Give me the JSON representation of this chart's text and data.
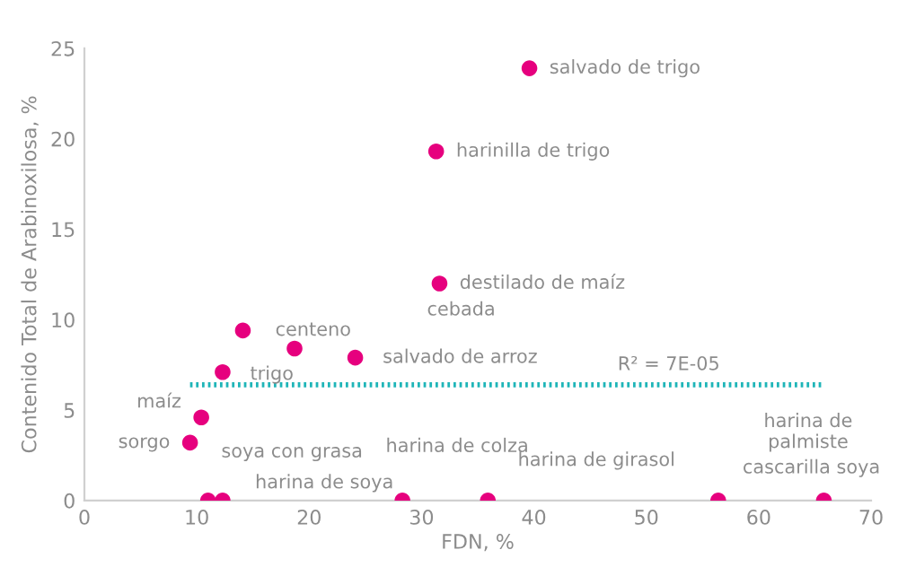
{
  "chart_data": {
    "type": "scatter",
    "xlabel": "FDN, %",
    "ylabel": "Contenido Total de Arabinoxilosa, %",
    "xlim": [
      0,
      70
    ],
    "xticks": [
      0,
      10,
      20,
      30,
      40,
      50,
      60,
      70
    ],
    "ylim": [
      0,
      25
    ],
    "yticks": [
      0,
      5,
      10,
      15,
      20,
      25
    ],
    "grid": false,
    "marker": "circle",
    "series": [
      {
        "color": "#e6007e",
        "x": [
          39.6,
          31.3,
          31.6,
          14.1,
          18.7,
          24.1,
          12.3,
          10.4,
          9.4,
          11.0,
          12.3,
          28.3,
          35.9,
          56.4,
          65.8
        ],
        "values": [
          23.9,
          19.3,
          12.0,
          9.4,
          8.4,
          7.9,
          7.1,
          4.6,
          3.2,
          0,
          0,
          0,
          0,
          0,
          0
        ]
      },
      {
        "type": "line",
        "color": "#1fb5b8",
        "line_style": "dotted",
        "marker": "none",
        "x": [
          9.4,
          65.8
        ],
        "values": [
          6.4,
          6.4
        ]
      }
    ],
    "annotations": [
      {
        "text": "salvado de trigo",
        "x": 39.6,
        "y": 23.9
      },
      {
        "text": "harinilla de trigo",
        "x": 31.3,
        "y": 19.3
      },
      {
        "text": "destilado de maíz",
        "x": 31.6,
        "y": 12.0
      },
      {
        "text": "centeno",
        "x": 14.1,
        "y": 9.4
      },
      "cebada",
      {
        "text": "salvado de arroz",
        "x": 24.1,
        "y": 7.9
      },
      {
        "text": "trigo",
        "x": 12.3,
        "y": 7.1
      },
      {
        "text": "maíz",
        "x": 10.4,
        "y": 4.6
      },
      {
        "text": "sorgo",
        "x": 9.4,
        "y": 3.2
      },
      "soya con grasa",
      {
        "text": "harina de soya",
        "x": 12.3,
        "y": 0
      },
      "harina de colza",
      {
        "text": "harina de girasol",
        "x": 35.9,
        "y": 0
      },
      "harina de\npalmiste",
      {
        "text": "cascarilla soya",
        "x": 65.8,
        "y": 0
      },
      {
        "text": "R² = 7E-05",
        "x": 52,
        "y": 6.4
      }
    ]
  }
}
